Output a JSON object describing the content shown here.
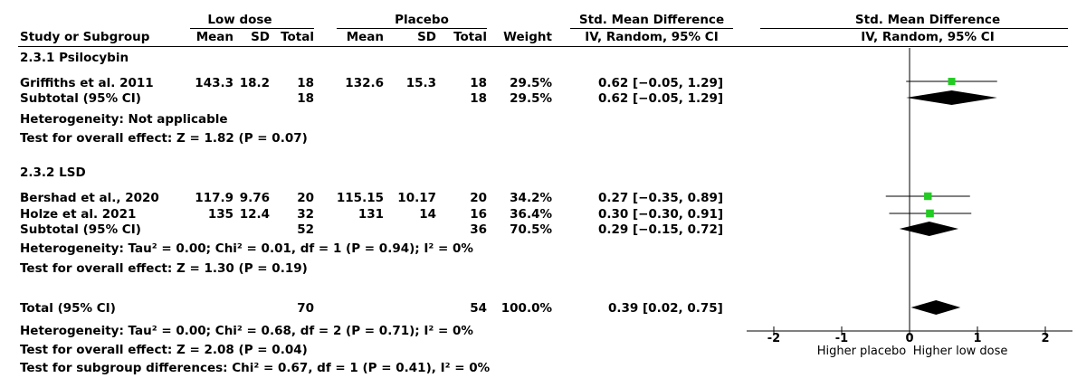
{
  "header": {
    "group1": "Low dose",
    "group2": "Placebo",
    "smd_title": "Std. Mean Difference",
    "smd_method": "IV, Random, 95% CI",
    "plot_title": "Std. Mean Difference",
    "plot_method": "IV, Random, 95% CI",
    "cols": {
      "study": "Study or Subgroup",
      "mean1": "Mean",
      "sd1": "SD",
      "total1": "Total",
      "mean2": "Mean",
      "sd2": "SD",
      "total2": "Total",
      "weight": "Weight"
    }
  },
  "groups": [
    {
      "title": "2.3.1 Psilocybin",
      "studies": [
        {
          "name": "Griffiths et al. 2011",
          "mean1": "143.3",
          "sd1": "18.2",
          "n1": "18",
          "mean2": "132.6",
          "sd2": "15.3",
          "n2": "18",
          "weight": "29.5%",
          "ci": "0.62 [−0.05, 1.29]"
        }
      ],
      "subtotal": {
        "label": "Subtotal (95% CI)",
        "n1": "18",
        "n2": "18",
        "weight": "29.5%",
        "ci": "0.62 [−0.05, 1.29]"
      },
      "heterogeneity": "Heterogeneity: Not applicable",
      "overall": "Test for overall effect: Z = 1.82 (P = 0.07)"
    },
    {
      "title": "2.3.2 LSD",
      "studies": [
        {
          "name": "Bershad et al., 2020",
          "mean1": "117.9",
          "sd1": "9.76",
          "n1": "20",
          "mean2": "115.15",
          "sd2": "10.17",
          "n2": "20",
          "weight": "34.2%",
          "ci": "0.27 [−0.35, 0.89]"
        },
        {
          "name": "Holze et al. 2021",
          "mean1": "135",
          "sd1": "12.4",
          "n1": "32",
          "mean2": "131",
          "sd2": "14",
          "n2": "16",
          "weight": "36.4%",
          "ci": "0.30 [−0.30, 0.91]"
        }
      ],
      "subtotal": {
        "label": "Subtotal (95% CI)",
        "n1": "52",
        "n2": "36",
        "weight": "70.5%",
        "ci": "0.29 [−0.15, 0.72]"
      },
      "heterogeneity": "Heterogeneity: Tau² = 0.00; Chi² = 0.01, df = 1 (P = 0.94); I² = 0%",
      "overall": "Test for overall effect: Z = 1.30 (P = 0.19)"
    }
  ],
  "total": {
    "label": "Total (95% CI)",
    "n1": "70",
    "n2": "54",
    "weight": "100.0%",
    "ci": "0.39 [0.02, 0.75]"
  },
  "footer": [
    "Heterogeneity: Tau² = 0.00; Chi² = 0.68, df = 2 (P = 0.71); I² = 0%",
    "Test for overall effect: Z = 2.08 (P = 0.04)",
    "Test for subgroup differences: Chi² = 0.67, df = 1 (P = 0.41), I² = 0%"
  ],
  "colors": {
    "square": "#22cc22",
    "diamond": "#000000",
    "line": "#000000"
  },
  "chart_data": {
    "type": "forest",
    "xlim": [
      -2,
      2
    ],
    "ticks": [
      -2,
      -1,
      0,
      1,
      2
    ],
    "tick_labels": [
      "-2",
      "-1",
      "0",
      "1",
      "2"
    ],
    "xlabel_left": "Higher placebo",
    "xlabel_right": "Higher low dose",
    "studies": [
      {
        "name": "Griffiths et al. 2011",
        "est": 0.62,
        "lo": -0.05,
        "hi": 1.29,
        "weight": 29.5
      },
      {
        "name": "Bershad et al., 2020",
        "est": 0.27,
        "lo": -0.35,
        "hi": 0.89,
        "weight": 34.2
      },
      {
        "name": "Holze et al. 2021",
        "est": 0.3,
        "lo": -0.3,
        "hi": 0.91,
        "weight": 36.4
      }
    ],
    "summaries": [
      {
        "name": "Subtotal (95% CI) 2.3.1 Psilocybin",
        "est": 0.62,
        "lo": -0.05,
        "hi": 1.29
      },
      {
        "name": "Subtotal (95% CI) 2.3.2 LSD",
        "est": 0.29,
        "lo": -0.15,
        "hi": 0.72
      },
      {
        "name": "Total (95% CI)",
        "est": 0.39,
        "lo": 0.02,
        "hi": 0.75
      }
    ]
  }
}
